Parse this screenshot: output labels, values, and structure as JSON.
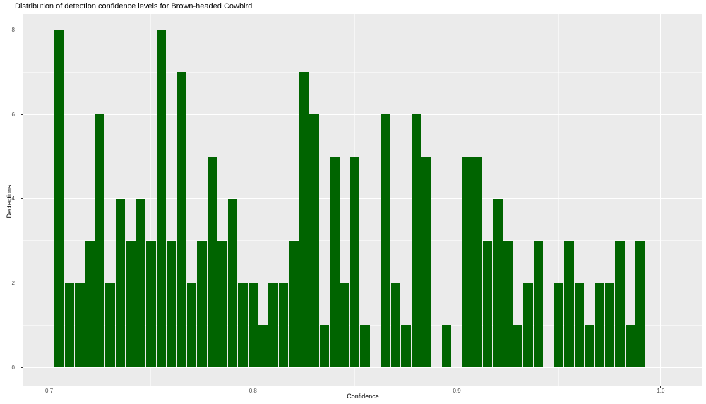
{
  "chart_data": {
    "type": "bar",
    "subtype": "histogram",
    "title": "Distribution of detection confidence levels for Brown-headed Cowbird",
    "xlabel": "Confidence",
    "ylabel": "Dectections",
    "bin_width": 0.005,
    "bin_centers": [
      0.705,
      0.71,
      0.715,
      0.72,
      0.725,
      0.73,
      0.735,
      0.74,
      0.745,
      0.75,
      0.755,
      0.76,
      0.765,
      0.77,
      0.775,
      0.78,
      0.785,
      0.79,
      0.795,
      0.8,
      0.805,
      0.81,
      0.815,
      0.82,
      0.825,
      0.83,
      0.835,
      0.84,
      0.845,
      0.85,
      0.855,
      0.86,
      0.865,
      0.87,
      0.875,
      0.88,
      0.885,
      0.89,
      0.895,
      0.9,
      0.905,
      0.91,
      0.915,
      0.92,
      0.925,
      0.93,
      0.935,
      0.94,
      0.945,
      0.95,
      0.955,
      0.96,
      0.965,
      0.97,
      0.975,
      0.98,
      0.985,
      0.99
    ],
    "counts": [
      8,
      2,
      2,
      3,
      6,
      2,
      4,
      3,
      4,
      3,
      8,
      3,
      7,
      2,
      3,
      5,
      3,
      4,
      2,
      2,
      1,
      2,
      2,
      3,
      7,
      6,
      1,
      5,
      2,
      5,
      1,
      0,
      6,
      2,
      1,
      6,
      5,
      0,
      1,
      0,
      5,
      5,
      3,
      4,
      3,
      1,
      2,
      3,
      0,
      2,
      3,
      2,
      1,
      2,
      2,
      3,
      1,
      3
    ],
    "x_ticks": [
      0.7,
      0.8,
      0.9,
      1.0
    ],
    "x_tick_labels": [
      "0.7",
      "0.8",
      "0.9",
      "1.0"
    ],
    "x_minor_ticks": [
      0.75,
      0.85,
      0.95
    ],
    "y_ticks": [
      0,
      2,
      4,
      6,
      8
    ],
    "y_tick_labels": [
      "0",
      "2",
      "4",
      "6",
      "8"
    ],
    "y_minor_ticks": [
      1,
      3,
      5,
      7
    ],
    "xlim": [
      0.687,
      1.02
    ],
    "ylim": [
      -0.42,
      8.36
    ],
    "grid": "on",
    "legend": "none",
    "bar_color": "#006400",
    "panel_color": "#EBEBEB",
    "grid_color": "#FFFFFF",
    "tick_label_color": "#4D4D4D",
    "text_color": "#000000"
  }
}
